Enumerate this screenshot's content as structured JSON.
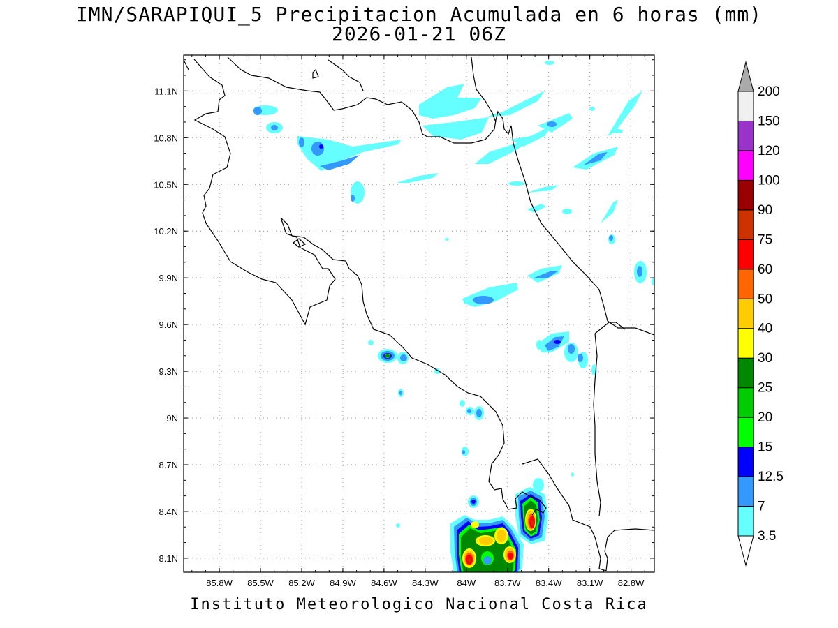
{
  "title": "IMN/SARAPIQUI_5 Precipitacion Acumulada en 6 horas (mm)",
  "subtitle": "2026-01-21 06Z",
  "footer": "Instituto Meteorologico Nacional Costa Rica",
  "map": {
    "lon_range": [
      -86.06,
      -82.63
    ],
    "lat_range": [
      8.01,
      11.33
    ],
    "lon_ticks": [
      "85.8W",
      "85.5W",
      "85.2W",
      "84.9W",
      "84.6W",
      "84.3W",
      "84W",
      "83.7W",
      "83.4W",
      "83.1W",
      "82.8W"
    ],
    "lat_ticks": [
      "8.1N",
      "8.4N",
      "8.7N",
      "9N",
      "9.3N",
      "9.6N",
      "9.9N",
      "10.2N",
      "10.5N",
      "10.8N",
      "11.1N"
    ],
    "grid": true
  },
  "colorbar": {
    "labels": [
      "3.5",
      "7",
      "12.5",
      "15",
      "20",
      "25",
      "30",
      "40",
      "50",
      "60",
      "75",
      "90",
      "100",
      "120",
      "150",
      "200"
    ],
    "colors": [
      "#ffffff",
      "#66ffff",
      "#3399ff",
      "#0000ff",
      "#00ff00",
      "#00cc00",
      "#008800",
      "#ffff00",
      "#ffcc00",
      "#ff6600",
      "#ff0000",
      "#cc3300",
      "#990000",
      "#ff00ff",
      "#9933cc",
      "#f0f0f0",
      "#aaaaaa"
    ]
  }
}
